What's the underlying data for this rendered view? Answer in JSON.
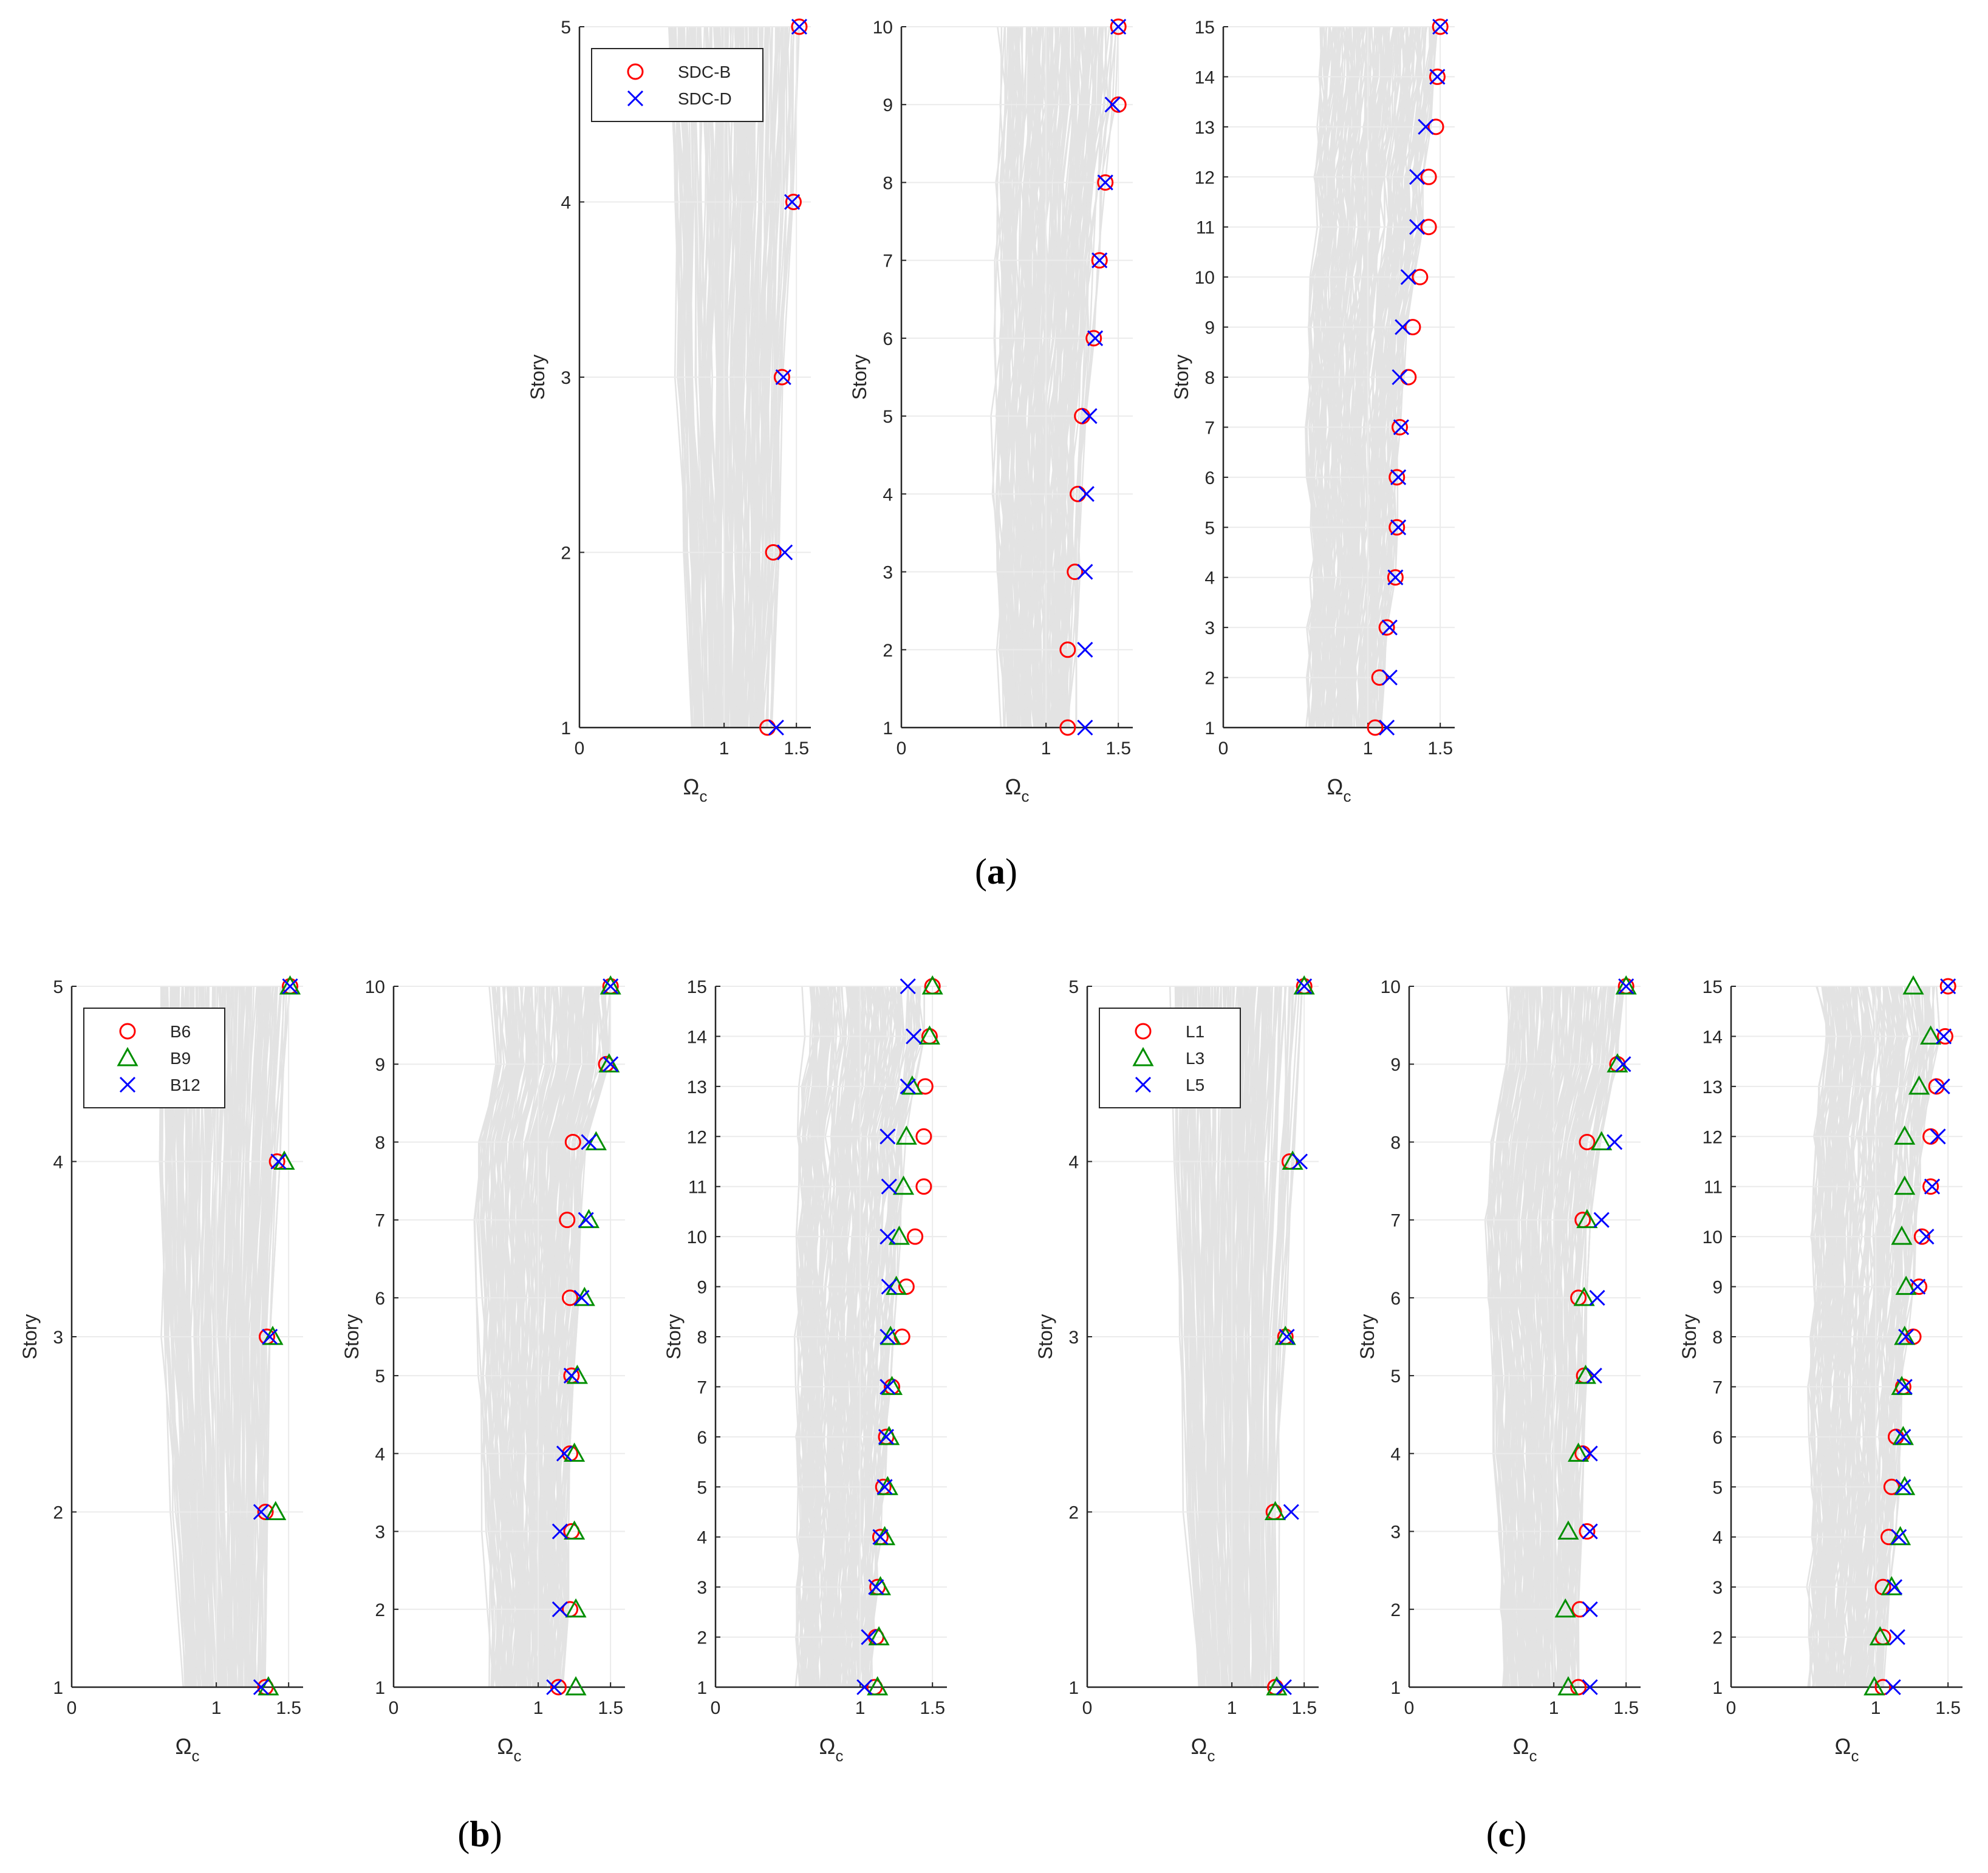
{
  "colors": {
    "background_curves": "#e3e3e3",
    "grid": "#ebebeb",
    "axis": "#262626",
    "red": "#ff0000",
    "green": "#008f00",
    "blue": "#0000ff"
  },
  "panel_labels": {
    "a": {
      "open": "(",
      "letter": "a",
      "close": ")"
    },
    "b": {
      "open": "(",
      "letter": "b",
      "close": ")"
    },
    "c": {
      "open": "(",
      "letter": "c",
      "close": ")"
    }
  },
  "chart_data": [
    {
      "type": "scatter",
      "group": "a",
      "xlabel": "Ω",
      "xlabel_sub": "c",
      "ylabel": "Story",
      "xlim": [
        0,
        1.6
      ],
      "ylim": [
        1,
        5
      ],
      "xticks": [
        0,
        1,
        1.5
      ],
      "yticks": [
        1,
        2,
        3,
        4,
        5
      ],
      "grid": true,
      "background_lines": true,
      "legend": {
        "position": "top-left",
        "entries": [
          {
            "label": "SDC-B",
            "marker": "circle",
            "color": "#ff0000"
          },
          {
            "label": "SDC-D",
            "marker": "x",
            "color": "#0000ff"
          }
        ]
      },
      "series": [
        {
          "name": "SDC-B",
          "marker": "circle",
          "color": "#ff0000",
          "x": [
            1.3,
            1.34,
            1.4,
            1.48,
            1.52
          ],
          "y": [
            1,
            2,
            3,
            4,
            5
          ]
        },
        {
          "name": "SDC-D",
          "marker": "x",
          "color": "#0000ff",
          "x": [
            1.36,
            1.42,
            1.41,
            1.47,
            1.52
          ],
          "y": [
            1,
            2,
            3,
            4,
            5
          ]
        }
      ]
    },
    {
      "type": "scatter",
      "group": "a",
      "xlabel": "Ω",
      "xlabel_sub": "c",
      "ylabel": "Story",
      "xlim": [
        0,
        1.6
      ],
      "ylim": [
        1,
        10
      ],
      "xticks": [
        0,
        1,
        1.5
      ],
      "yticks": [
        1,
        2,
        3,
        4,
        5,
        6,
        7,
        8,
        9,
        10
      ],
      "grid": true,
      "background_lines": true,
      "series": [
        {
          "name": "SDC-B",
          "marker": "circle",
          "color": "#ff0000",
          "x": [
            1.15,
            1.15,
            1.2,
            1.22,
            1.25,
            1.33,
            1.37,
            1.41,
            1.5,
            1.5
          ],
          "y": [
            1,
            2,
            3,
            4,
            5,
            6,
            7,
            8,
            9,
            10
          ]
        },
        {
          "name": "SDC-D",
          "marker": "x",
          "color": "#0000ff",
          "x": [
            1.27,
            1.27,
            1.27,
            1.28,
            1.3,
            1.34,
            1.37,
            1.41,
            1.46,
            1.5
          ],
          "y": [
            1,
            2,
            3,
            4,
            5,
            6,
            7,
            8,
            9,
            10
          ]
        }
      ]
    },
    {
      "type": "scatter",
      "group": "a",
      "xlabel": "Ω",
      "xlabel_sub": "c",
      "ylabel": "Story",
      "xlim": [
        0,
        1.6
      ],
      "ylim": [
        1,
        15
      ],
      "xticks": [
        0,
        1,
        1.5
      ],
      "yticks": [
        1,
        2,
        3,
        4,
        5,
        6,
        7,
        8,
        9,
        10,
        11,
        12,
        13,
        14,
        15
      ],
      "grid": true,
      "background_lines": true,
      "series": [
        {
          "name": "SDC-B",
          "marker": "circle",
          "color": "#ff0000",
          "x": [
            1.05,
            1.08,
            1.13,
            1.19,
            1.2,
            1.2,
            1.22,
            1.28,
            1.31,
            1.36,
            1.42,
            1.42,
            1.47,
            1.48,
            1.5
          ],
          "y": [
            1,
            2,
            3,
            4,
            5,
            6,
            7,
            8,
            9,
            10,
            11,
            12,
            13,
            14,
            15
          ]
        },
        {
          "name": "SDC-D",
          "marker": "x",
          "color": "#0000ff",
          "x": [
            1.13,
            1.15,
            1.15,
            1.19,
            1.21,
            1.21,
            1.23,
            1.22,
            1.24,
            1.28,
            1.34,
            1.34,
            1.4,
            1.48,
            1.5
          ],
          "y": [
            1,
            2,
            3,
            4,
            5,
            6,
            7,
            8,
            9,
            10,
            11,
            12,
            13,
            14,
            15
          ]
        }
      ]
    },
    {
      "type": "scatter",
      "group": "b",
      "xlabel": "Ω",
      "xlabel_sub": "c",
      "ylabel": "Story",
      "xlim": [
        0,
        1.6
      ],
      "ylim": [
        1,
        5
      ],
      "xticks": [
        0,
        1,
        1.5
      ],
      "yticks": [
        1,
        2,
        3,
        4,
        5
      ],
      "grid": true,
      "background_lines": true,
      "legend": {
        "position": "top-left",
        "entries": [
          {
            "label": "B6",
            "marker": "circle",
            "color": "#ff0000"
          },
          {
            "label": "B9",
            "marker": "triangle",
            "color": "#008f00"
          },
          {
            "label": "B12",
            "marker": "x",
            "color": "#0000ff"
          }
        ]
      },
      "series": [
        {
          "name": "B6",
          "marker": "circle",
          "color": "#ff0000",
          "x": [
            1.34,
            1.34,
            1.35,
            1.42,
            1.51
          ],
          "y": [
            1,
            2,
            3,
            4,
            5
          ]
        },
        {
          "name": "B9",
          "marker": "triangle",
          "color": "#008f00",
          "x": [
            1.36,
            1.41,
            1.39,
            1.47,
            1.51
          ],
          "y": [
            1,
            2,
            3,
            4,
            5
          ]
        },
        {
          "name": "B12",
          "marker": "x",
          "color": "#0000ff",
          "x": [
            1.31,
            1.31,
            1.37,
            1.43,
            1.51
          ],
          "y": [
            1,
            2,
            3,
            4,
            5
          ]
        }
      ]
    },
    {
      "type": "scatter",
      "group": "b",
      "xlabel": "Ω",
      "xlabel_sub": "c",
      "ylabel": "Story",
      "xlim": [
        0,
        1.6
      ],
      "ylim": [
        1,
        10
      ],
      "xticks": [
        0,
        1,
        1.5
      ],
      "yticks": [
        1,
        2,
        3,
        4,
        5,
        6,
        7,
        8,
        9,
        10
      ],
      "grid": true,
      "background_lines": true,
      "series": [
        {
          "name": "B6",
          "marker": "circle",
          "color": "#ff0000",
          "x": [
            1.14,
            1.22,
            1.23,
            1.22,
            1.23,
            1.22,
            1.2,
            1.24,
            1.47,
            1.5
          ],
          "y": [
            1,
            2,
            3,
            4,
            5,
            6,
            7,
            8,
            9,
            10
          ]
        },
        {
          "name": "B9",
          "marker": "triangle",
          "color": "#008f00",
          "x": [
            1.26,
            1.26,
            1.25,
            1.25,
            1.27,
            1.32,
            1.35,
            1.4,
            1.49,
            1.5
          ],
          "y": [
            1,
            2,
            3,
            4,
            5,
            6,
            7,
            8,
            9,
            10
          ]
        },
        {
          "name": "B12",
          "marker": "x",
          "color": "#0000ff",
          "x": [
            1.11,
            1.15,
            1.15,
            1.18,
            1.23,
            1.3,
            1.33,
            1.35,
            1.5,
            1.5
          ],
          "y": [
            1,
            2,
            3,
            4,
            5,
            6,
            7,
            8,
            9,
            10
          ]
        }
      ]
    },
    {
      "type": "scatter",
      "group": "b",
      "xlabel": "Ω",
      "xlabel_sub": "c",
      "ylabel": "Story",
      "xlim": [
        0,
        1.6
      ],
      "ylim": [
        1,
        15
      ],
      "xticks": [
        0,
        1,
        1.5
      ],
      "yticks": [
        1,
        2,
        3,
        4,
        5,
        6,
        7,
        8,
        9,
        10,
        11,
        12,
        13,
        14,
        15
      ],
      "grid": true,
      "background_lines": true,
      "series": [
        {
          "name": "B6",
          "marker": "circle",
          "color": "#ff0000",
          "x": [
            1.1,
            1.11,
            1.12,
            1.14,
            1.16,
            1.18,
            1.22,
            1.29,
            1.32,
            1.38,
            1.44,
            1.44,
            1.45,
            1.48,
            1.5
          ],
          "y": [
            1,
            2,
            3,
            4,
            5,
            6,
            7,
            8,
            9,
            10,
            11,
            12,
            13,
            14,
            15
          ]
        },
        {
          "name": "B9",
          "marker": "triangle",
          "color": "#008f00",
          "x": [
            1.12,
            1.13,
            1.14,
            1.17,
            1.19,
            1.2,
            1.22,
            1.21,
            1.25,
            1.27,
            1.3,
            1.32,
            1.36,
            1.48,
            1.5
          ],
          "y": [
            1,
            2,
            3,
            4,
            5,
            6,
            7,
            8,
            9,
            10,
            11,
            12,
            13,
            14,
            15
          ]
        },
        {
          "name": "B12",
          "marker": "x",
          "color": "#0000ff",
          "x": [
            1.03,
            1.06,
            1.11,
            1.14,
            1.17,
            1.18,
            1.19,
            1.19,
            1.2,
            1.19,
            1.2,
            1.19,
            1.33,
            1.37,
            1.33
          ],
          "y": [
            1,
            2,
            3,
            4,
            5,
            6,
            7,
            8,
            9,
            10,
            11,
            12,
            13,
            14,
            15
          ]
        }
      ]
    },
    {
      "type": "scatter",
      "group": "c",
      "xlabel": "Ω",
      "xlabel_sub": "c",
      "ylabel": "Story",
      "xlim": [
        0,
        1.6
      ],
      "ylim": [
        1,
        5
      ],
      "xticks": [
        0,
        1,
        1.5
      ],
      "yticks": [
        1,
        2,
        3,
        4,
        5
      ],
      "grid": true,
      "background_lines": true,
      "legend": {
        "position": "top-left",
        "entries": [
          {
            "label": "L1",
            "marker": "circle",
            "color": "#ff0000"
          },
          {
            "label": "L3",
            "marker": "triangle",
            "color": "#008f00"
          },
          {
            "label": "L5",
            "marker": "x",
            "color": "#0000ff"
          }
        ]
      },
      "series": [
        {
          "name": "L1",
          "marker": "circle",
          "color": "#ff0000",
          "x": [
            1.3,
            1.29,
            1.37,
            1.4,
            1.5
          ],
          "y": [
            1,
            2,
            3,
            4,
            5
          ]
        },
        {
          "name": "L3",
          "marker": "triangle",
          "color": "#008f00",
          "x": [
            1.31,
            1.3,
            1.37,
            1.42,
            1.5
          ],
          "y": [
            1,
            2,
            3,
            4,
            5
          ]
        },
        {
          "name": "L5",
          "marker": "x",
          "color": "#0000ff",
          "x": [
            1.36,
            1.41,
            1.38,
            1.47,
            1.5
          ],
          "y": [
            1,
            2,
            3,
            4,
            5
          ]
        }
      ]
    },
    {
      "type": "scatter",
      "group": "c",
      "xlabel": "Ω",
      "xlabel_sub": "c",
      "ylabel": "Story",
      "xlim": [
        0,
        1.6
      ],
      "ylim": [
        1,
        10
      ],
      "xticks": [
        0,
        1,
        1.5
      ],
      "yticks": [
        1,
        2,
        3,
        4,
        5,
        6,
        7,
        8,
        9,
        10
      ],
      "grid": true,
      "background_lines": true,
      "series": [
        {
          "name": "L1",
          "marker": "circle",
          "color": "#ff0000",
          "x": [
            1.17,
            1.18,
            1.23,
            1.2,
            1.21,
            1.17,
            1.2,
            1.23,
            1.44,
            1.5
          ],
          "y": [
            1,
            2,
            3,
            4,
            5,
            6,
            7,
            8,
            9,
            10
          ]
        },
        {
          "name": "L3",
          "marker": "triangle",
          "color": "#008f00",
          "x": [
            1.1,
            1.08,
            1.1,
            1.17,
            1.22,
            1.21,
            1.23,
            1.33,
            1.44,
            1.5
          ],
          "y": [
            1,
            2,
            3,
            4,
            5,
            6,
            7,
            8,
            9,
            10
          ]
        },
        {
          "name": "L5",
          "marker": "x",
          "color": "#0000ff",
          "x": [
            1.25,
            1.25,
            1.25,
            1.25,
            1.28,
            1.3,
            1.33,
            1.42,
            1.48,
            1.5
          ],
          "y": [
            1,
            2,
            3,
            4,
            5,
            6,
            7,
            8,
            9,
            10
          ]
        }
      ]
    },
    {
      "type": "scatter",
      "group": "c",
      "xlabel": "Ω",
      "xlabel_sub": "c",
      "ylabel": "Story",
      "xlim": [
        0,
        1.6
      ],
      "ylim": [
        1,
        15
      ],
      "xticks": [
        0,
        1,
        1.5
      ],
      "yticks": [
        1,
        2,
        3,
        4,
        5,
        6,
        7,
        8,
        9,
        10,
        11,
        12,
        13,
        14,
        15
      ],
      "grid": true,
      "background_lines": true,
      "series": [
        {
          "name": "L1",
          "marker": "circle",
          "color": "#ff0000",
          "x": [
            1.05,
            1.05,
            1.05,
            1.09,
            1.11,
            1.14,
            1.19,
            1.26,
            1.3,
            1.32,
            1.38,
            1.38,
            1.42,
            1.48,
            1.5
          ],
          "y": [
            1,
            2,
            3,
            4,
            5,
            6,
            7,
            8,
            9,
            10,
            11,
            12,
            13,
            14,
            15
          ]
        },
        {
          "name": "L3",
          "marker": "triangle",
          "color": "#008f00",
          "x": [
            0.99,
            1.03,
            1.11,
            1.17,
            1.2,
            1.19,
            1.18,
            1.2,
            1.21,
            1.18,
            1.2,
            1.2,
            1.3,
            1.38,
            1.26
          ],
          "y": [
            1,
            2,
            3,
            4,
            5,
            6,
            7,
            8,
            9,
            10,
            11,
            12,
            13,
            14,
            15
          ]
        },
        {
          "name": "L5",
          "marker": "x",
          "color": "#0000ff",
          "x": [
            1.12,
            1.15,
            1.13,
            1.16,
            1.19,
            1.19,
            1.2,
            1.21,
            1.29,
            1.35,
            1.39,
            1.43,
            1.46,
            1.47,
            1.5
          ],
          "y": [
            1,
            2,
            3,
            4,
            5,
            6,
            7,
            8,
            9,
            10,
            11,
            12,
            13,
            14,
            15
          ]
        }
      ]
    }
  ]
}
